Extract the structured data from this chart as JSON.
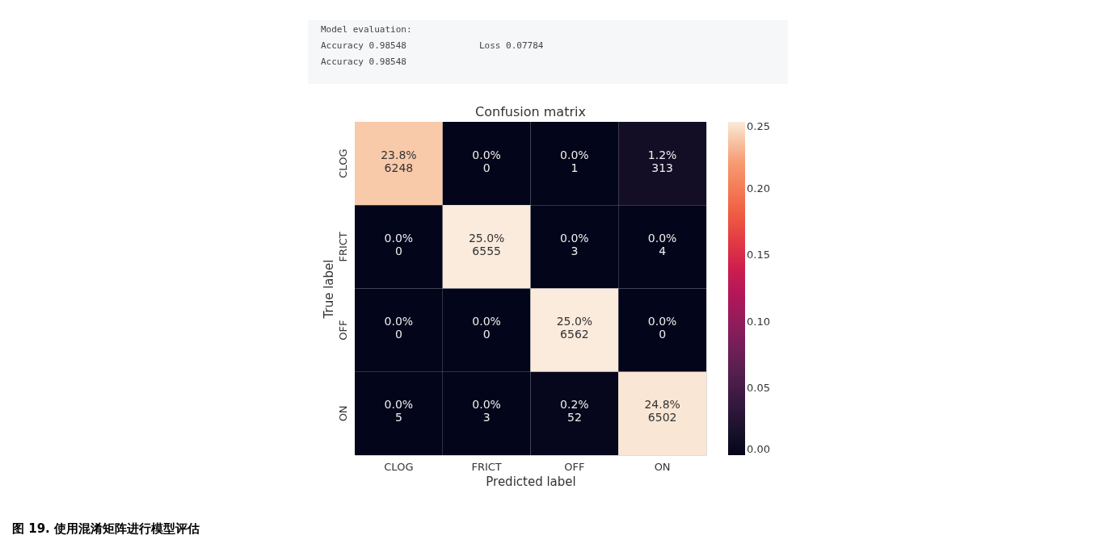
{
  "chart_data": {
    "type": "heatmap",
    "title": "Confusion matrix",
    "xlabel": "Predicted label",
    "ylabel": "True label",
    "categories": [
      "CLOG",
      "FRICT",
      "OFF",
      "ON"
    ],
    "y_categories": [
      "CLOG",
      "FRICT",
      "OFF",
      "ON"
    ],
    "cells": [
      [
        0.238,
        0.0,
        0.0,
        0.012
      ],
      [
        0.0,
        0.25,
        0.0,
        0.0
      ],
      [
        0.0,
        0.0,
        0.25,
        0.0
      ],
      [
        0.0,
        0.0,
        0.002,
        0.248
      ]
    ],
    "cell_labels": [
      [
        "23.8%\n6248",
        "0.0%\n0",
        "0.0%\n1",
        "1.2%\n313"
      ],
      [
        "0.0%\n0",
        "25.0%\n6555",
        "0.0%\n3",
        "0.0%\n4"
      ],
      [
        "0.0%\n0",
        "0.0%\n0",
        "25.0%\n6562",
        "0.0%\n0"
      ],
      [
        "0.0%\n5",
        "0.0%\n3",
        "0.2%\n52",
        "24.8%\n6502"
      ]
    ],
    "clim": [
      0,
      0.25
    ],
    "cticks": [
      {
        "value": 0,
        "label": "0.00"
      },
      {
        "value": 0.05,
        "label": "0.05"
      },
      {
        "value": 0.1,
        "label": "0.10"
      },
      {
        "value": 0.15,
        "label": "0.15"
      },
      {
        "value": 0.2,
        "label": "0.20"
      },
      {
        "value": 0.25,
        "label": "0.25"
      }
    ],
    "colors": [
      "#03051a",
      "#221331",
      "#451c47",
      "#691f55",
      "#921c5b",
      "#b91657",
      "#d92847",
      "#ed513e",
      "#f47c56",
      "#f6a47c",
      "#faebdd"
    ],
    "annotations": [
      "Model evaluation:",
      "Accuracy 0.98548",
      "Loss 0.07784",
      "Accuracy 0.98548",
      "图 19. 使用混淆矩阵进行模型评估"
    ]
  }
}
